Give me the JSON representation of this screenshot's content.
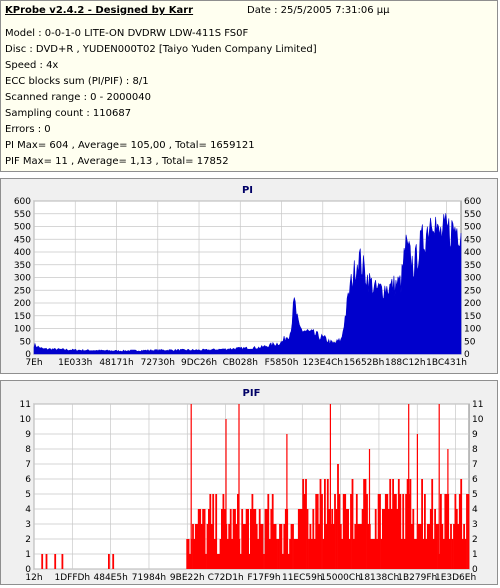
{
  "header": {
    "title": "KProbe v2.4.2 - Designed by Karr",
    "date": "Date : 25/5/2005 7:31:06 μμ",
    "lines": [
      "Model : 0-0-1-0 LITE-ON DVDRW LDW-411S   FS0F",
      "Disc : DVD+R , YUDEN000T02 [Taiyo Yuden Company Limited]",
      "Speed : 4x",
      "ECC blocks sum (PI/PIF) : 8/1",
      "Scanned range : 0 - 2000040",
      "Sampling count : 110687",
      "Errors : 0",
      "PI Max= 604 , Average= 105,00 , Total= 1659121",
      "PIF Max= 11 , Average= 1,13 , Total= 17852"
    ]
  },
  "chart_data": [
    {
      "type": "area",
      "title": "PI",
      "ylim": [
        0,
        600
      ],
      "yticks": [
        0,
        50,
        100,
        150,
        200,
        250,
        300,
        350,
        400,
        450,
        500,
        550,
        600
      ],
      "xticks": [
        "7Eh",
        "1E033h",
        "48171h",
        "72730h",
        "9DC26h",
        "CB028h",
        "F5850h",
        "123E4Ch",
        "15652Bh",
        "188C12h",
        "1BC431h"
      ],
      "color": "#0000cc",
      "grid": true,
      "profile": [
        [
          0,
          35
        ],
        [
          0.02,
          20
        ],
        [
          0.1,
          15
        ],
        [
          0.2,
          12
        ],
        [
          0.3,
          15
        ],
        [
          0.4,
          15
        ],
        [
          0.46,
          20
        ],
        [
          0.53,
          25
        ],
        [
          0.58,
          45
        ],
        [
          0.6,
          85
        ],
        [
          0.61,
          200
        ],
        [
          0.62,
          100
        ],
        [
          0.65,
          80
        ],
        [
          0.68,
          60
        ],
        [
          0.7,
          40
        ],
        [
          0.72,
          55
        ],
        [
          0.74,
          260
        ],
        [
          0.76,
          380
        ],
        [
          0.78,
          300
        ],
        [
          0.8,
          250
        ],
        [
          0.83,
          260
        ],
        [
          0.86,
          280
        ],
        [
          0.87,
          420
        ],
        [
          0.89,
          340
        ],
        [
          0.9,
          400
        ],
        [
          0.92,
          480
        ],
        [
          0.935,
          580
        ],
        [
          0.945,
          460
        ],
        [
          0.97,
          480
        ],
        [
          1.0,
          500
        ]
      ]
    },
    {
      "type": "bar",
      "title": "PIF",
      "ylim": [
        0,
        11
      ],
      "yticks": [
        0,
        1,
        2,
        3,
        4,
        5,
        6,
        7,
        8,
        9,
        10,
        11
      ],
      "xticks": [
        "12h",
        "1DFFDh",
        "484E5h",
        "71984h",
        "9BE22h",
        "C72D1h",
        "F17F9h",
        "11EC59h",
        "15000Ch",
        "18138Ch",
        "1B279Fh",
        "1E3D6Eh"
      ],
      "color": "#ff0000",
      "grid": true,
      "baseline_before": 0.35,
      "base_after": 3,
      "spikes": [
        [
          0.36,
          11
        ],
        [
          0.44,
          10
        ],
        [
          0.47,
          11
        ],
        [
          0.58,
          9
        ],
        [
          0.68,
          11
        ],
        [
          0.77,
          8
        ],
        [
          0.86,
          11
        ],
        [
          0.88,
          9
        ],
        [
          0.93,
          11
        ],
        [
          0.95,
          8
        ]
      ]
    }
  ]
}
